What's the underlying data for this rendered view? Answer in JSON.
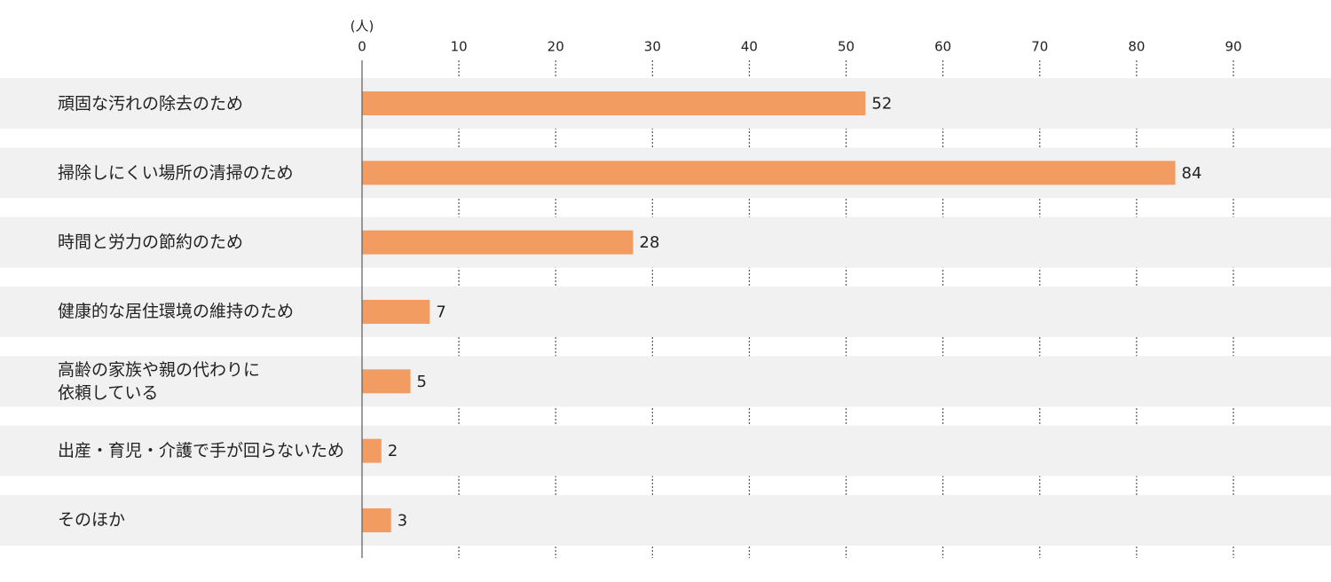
{
  "chart_data": {
    "type": "bar",
    "orientation": "horizontal",
    "unit_label": "(人)",
    "categories": [
      "頑固な汚れの除去のため",
      "掃除しにくい場所の清掃のため",
      "時間と労力の節約のため",
      "健康的な居住環境の維持のため",
      "高齢の家族や親の代わりに\n依頼している",
      "出産・育児・介護で手が回らないため",
      "そのほか"
    ],
    "values": [
      52,
      84,
      28,
      7,
      5,
      2,
      3
    ],
    "color": "#f39c62",
    "band_color": "#f1f1f1",
    "xlim": [
      0,
      90
    ],
    "xticks": [
      0,
      10,
      20,
      30,
      40,
      50,
      60,
      70,
      80,
      90
    ],
    "grid": true
  }
}
